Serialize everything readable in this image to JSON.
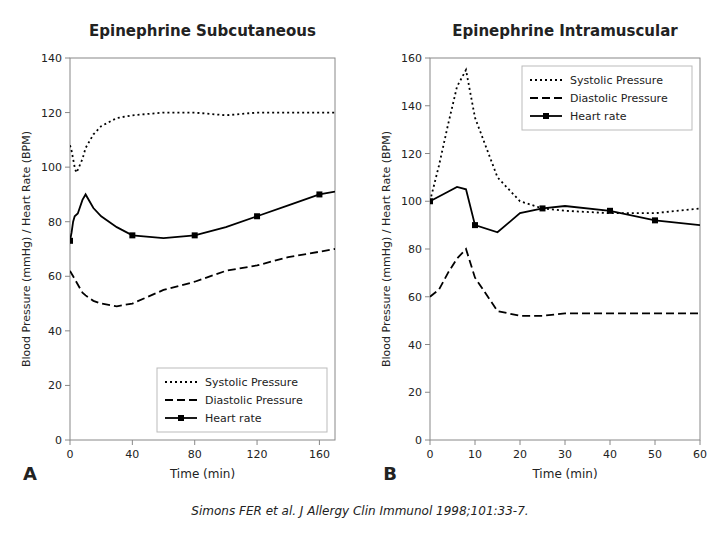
{
  "caption": "Simons FER et al.  J Allergy Clin Immunol 1998;101:33-7.",
  "chart_data": [
    {
      "type": "line",
      "title": "Epinephrine Subcutaneous",
      "panel_label": "A",
      "xlabel": "Time (min)",
      "ylabel": "Blood Pressure (mmHg) / Heart Rate (BPM)",
      "xlim": [
        0,
        170
      ],
      "ylim": [
        0,
        140
      ],
      "xticks": [
        0,
        40,
        80,
        120,
        160
      ],
      "yticks": [
        0,
        20,
        40,
        60,
        80,
        100,
        120,
        140
      ],
      "grid": false,
      "legend": "lower right",
      "series": [
        {
          "name": "Systolic Pressure",
          "color": "#000000",
          "line_style": "dotted",
          "x": [
            0,
            1,
            2,
            3,
            4,
            5,
            8,
            10,
            15,
            20,
            30,
            40,
            60,
            80,
            100,
            120,
            140,
            160,
            170
          ],
          "values": [
            108,
            106,
            103,
            100,
            98,
            99,
            103,
            107,
            112,
            115,
            118,
            119,
            120,
            120,
            119,
            120,
            120,
            120,
            120
          ]
        },
        {
          "name": "Diastolic Pressure",
          "color": "#000000",
          "line_style": "dashed",
          "x": [
            0,
            2,
            4,
            6,
            8,
            10,
            15,
            20,
            30,
            40,
            60,
            80,
            100,
            120,
            140,
            160,
            170
          ],
          "values": [
            62,
            60,
            58,
            56,
            54,
            53,
            51,
            50,
            49,
            50,
            55,
            58,
            62,
            64,
            67,
            69,
            70
          ]
        },
        {
          "name": "Heart rate",
          "color": "#000000",
          "line_style": "solid",
          "marker": "square",
          "x": [
            0,
            1,
            2,
            3,
            5,
            8,
            10,
            15,
            20,
            30,
            40,
            60,
            80,
            100,
            120,
            140,
            160,
            170
          ],
          "values": [
            73,
            76,
            80,
            82,
            83,
            88,
            90,
            85,
            82,
            78,
            75,
            74,
            75,
            78,
            82,
            86,
            90,
            91
          ],
          "marker_x": [
            0,
            40,
            80,
            120,
            160
          ],
          "marker_values": [
            73,
            75,
            75,
            82,
            90
          ]
        }
      ]
    },
    {
      "type": "line",
      "title": "Epinephrine Intramuscular",
      "panel_label": "B",
      "xlabel": "Time (min)",
      "ylabel": "Blood Pressure (mmHg) / Heart Rate (BPM)",
      "xlim": [
        0,
        60
      ],
      "ylim": [
        0,
        160
      ],
      "xticks": [
        0,
        10,
        20,
        30,
        40,
        50,
        60
      ],
      "yticks": [
        0,
        20,
        40,
        60,
        80,
        100,
        120,
        140,
        160
      ],
      "grid": false,
      "legend": "upper right",
      "series": [
        {
          "name": "Systolic Pressure",
          "color": "#000000",
          "line_style": "dotted",
          "x": [
            0,
            2,
            4,
            6,
            8,
            10,
            15,
            20,
            25,
            30,
            40,
            50,
            60
          ],
          "values": [
            100,
            115,
            132,
            148,
            155,
            135,
            110,
            100,
            97,
            96,
            95,
            95,
            97
          ]
        },
        {
          "name": "Diastolic Pressure",
          "color": "#000000",
          "line_style": "dashed",
          "x": [
            0,
            2,
            4,
            6,
            8,
            10,
            15,
            20,
            25,
            30,
            40,
            50,
            60
          ],
          "values": [
            60,
            63,
            70,
            76,
            80,
            68,
            54,
            52,
            52,
            53,
            53,
            53,
            53
          ]
        },
        {
          "name": "Heart rate",
          "color": "#000000",
          "line_style": "solid",
          "marker": "square",
          "x": [
            0,
            2,
            4,
            6,
            8,
            10,
            15,
            20,
            25,
            30,
            40,
            50,
            60
          ],
          "values": [
            100,
            102,
            104,
            106,
            105,
            90,
            87,
            95,
            97,
            98,
            96,
            92,
            90
          ],
          "marker_x": [
            0,
            10,
            25,
            40,
            50
          ],
          "marker_values": [
            100,
            90,
            97,
            96,
            92
          ]
        }
      ]
    }
  ]
}
